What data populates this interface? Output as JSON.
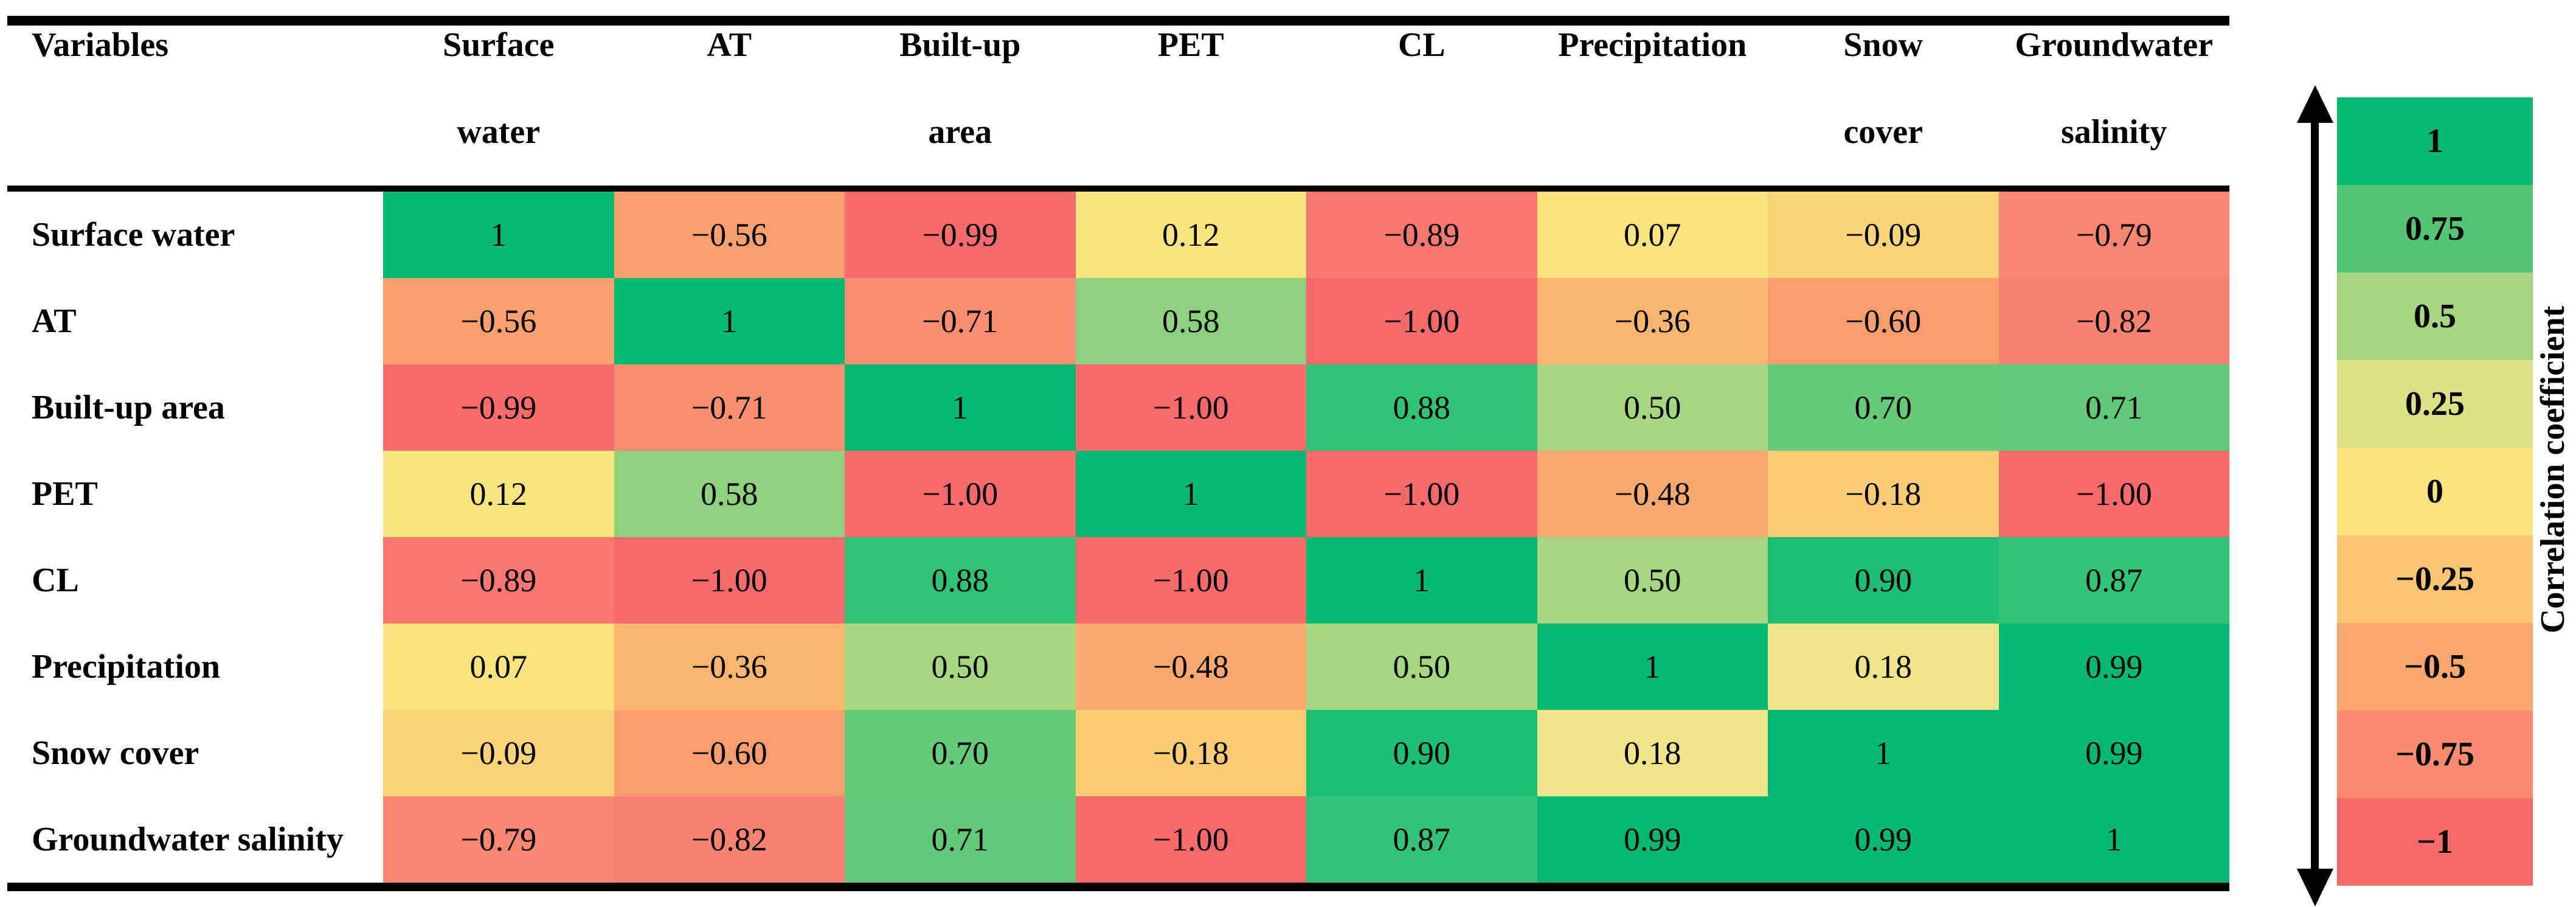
{
  "table": {
    "corner_label": "Variables",
    "columns": [
      {
        "lines": [
          "Surface",
          "water"
        ]
      },
      {
        "lines": [
          "AT"
        ]
      },
      {
        "lines": [
          "Built-up",
          "area"
        ]
      },
      {
        "lines": [
          "PET"
        ]
      },
      {
        "lines": [
          "CL"
        ]
      },
      {
        "lines": [
          "Precipitation"
        ]
      },
      {
        "lines": [
          "Snow",
          "cover"
        ]
      },
      {
        "lines": [
          "Groundwater",
          "salinity"
        ]
      }
    ],
    "rows": [
      {
        "label": "Surface water",
        "cells": [
          {
            "text": "1",
            "color": "#04BA70"
          },
          {
            "text": "−0.56",
            "color": "#F9A06E"
          },
          {
            "text": "−0.99",
            "color": "#F86A6C"
          },
          {
            "text": "0.12",
            "color": "#F8E57F"
          },
          {
            "text": "−0.89",
            "color": "#F87770"
          },
          {
            "text": "0.07",
            "color": "#FBE37D"
          },
          {
            "text": "−0.09",
            "color": "#FBD478"
          },
          {
            "text": "−0.79",
            "color": "#F98670"
          }
        ]
      },
      {
        "label": "AT",
        "cells": [
          {
            "text": "−0.56",
            "color": "#F9A06E"
          },
          {
            "text": "1",
            "color": "#04BA70"
          },
          {
            "text": "−0.71",
            "color": "#F98F70"
          },
          {
            "text": "0.58",
            "color": "#8DD07D"
          },
          {
            "text": "−1.00",
            "color": "#F8696C"
          },
          {
            "text": "−0.36",
            "color": "#FAB56F"
          },
          {
            "text": "−0.60",
            "color": "#F99C6E"
          },
          {
            "text": "−0.82",
            "color": "#F98370"
          }
        ]
      },
      {
        "label": "Built-up area",
        "cells": [
          {
            "text": "−0.99",
            "color": "#F86A6C"
          },
          {
            "text": "−0.71",
            "color": "#F98F70"
          },
          {
            "text": "1",
            "color": "#04BA70"
          },
          {
            "text": "−1.00",
            "color": "#F8696C"
          },
          {
            "text": "0.88",
            "color": "#2FC375"
          },
          {
            "text": "0.50",
            "color": "#A6D67F"
          },
          {
            "text": "0.70",
            "color": "#65CA7A"
          },
          {
            "text": "0.71",
            "color": "#62C97A"
          }
        ]
      },
      {
        "label": "PET",
        "cells": [
          {
            "text": "0.12",
            "color": "#F8E57F"
          },
          {
            "text": "0.58",
            "color": "#8DD07D"
          },
          {
            "text": "−1.00",
            "color": "#F8696C"
          },
          {
            "text": "1",
            "color": "#04BA70"
          },
          {
            "text": "−1.00",
            "color": "#F8696C"
          },
          {
            "text": "−0.48",
            "color": "#F9A96D"
          },
          {
            "text": "−0.18",
            "color": "#FBCC74"
          },
          {
            "text": "−1.00",
            "color": "#F8696C"
          }
        ]
      },
      {
        "label": "CL",
        "cells": [
          {
            "text": "−0.89",
            "color": "#F87770"
          },
          {
            "text": "−1.00",
            "color": "#F8696C"
          },
          {
            "text": "0.88",
            "color": "#2FC375"
          },
          {
            "text": "−1.00",
            "color": "#F8696C"
          },
          {
            "text": "1",
            "color": "#04BA70"
          },
          {
            "text": "0.50",
            "color": "#A6D67F"
          },
          {
            "text": "0.90",
            "color": "#1CBE73"
          },
          {
            "text": "0.87",
            "color": "#33C376"
          }
        ]
      },
      {
        "label": "Precipitation",
        "cells": [
          {
            "text": "0.07",
            "color": "#FBE37D"
          },
          {
            "text": "−0.36",
            "color": "#FAB56F"
          },
          {
            "text": "0.50",
            "color": "#A6D67F"
          },
          {
            "text": "−0.48",
            "color": "#F9A96D"
          },
          {
            "text": "0.50",
            "color": "#A6D67F"
          },
          {
            "text": "1",
            "color": "#04BA70"
          },
          {
            "text": "0.18",
            "color": "#EFE488"
          },
          {
            "text": "0.99",
            "color": "#04BA70"
          }
        ]
      },
      {
        "label": "Snow cover",
        "cells": [
          {
            "text": "−0.09",
            "color": "#FBD478"
          },
          {
            "text": "−0.60",
            "color": "#F99C6E"
          },
          {
            "text": "0.70",
            "color": "#65CA7A"
          },
          {
            "text": "−0.18",
            "color": "#FBCC74"
          },
          {
            "text": "0.90",
            "color": "#1CBE73"
          },
          {
            "text": "0.18",
            "color": "#EFE488"
          },
          {
            "text": "1",
            "color": "#04BA70"
          },
          {
            "text": "0.99",
            "color": "#04BA70"
          }
        ]
      },
      {
        "label": "Groundwater salinity",
        "cells": [
          {
            "text": "−0.79",
            "color": "#F98670"
          },
          {
            "text": "−0.82",
            "color": "#F98370"
          },
          {
            "text": "0.71",
            "color": "#62C97A"
          },
          {
            "text": "−1.00",
            "color": "#F8696C"
          },
          {
            "text": "0.87",
            "color": "#33C376"
          },
          {
            "text": "0.99",
            "color": "#04BA70"
          },
          {
            "text": "0.99",
            "color": "#04BA70"
          },
          {
            "text": "1",
            "color": "#04BA70"
          }
        ]
      }
    ]
  },
  "legend": {
    "label": "Correlation coefficient",
    "arrow_icon": "vertical-double-arrow-icon",
    "entries": [
      {
        "text": "1",
        "color": "#04BA70"
      },
      {
        "text": "0.75",
        "color": "#52C577"
      },
      {
        "text": "0.5",
        "color": "#A6D67F"
      },
      {
        "text": "0.25",
        "color": "#DDE183"
      },
      {
        "text": "0",
        "color": "#FAE27D"
      },
      {
        "text": "−0.25",
        "color": "#FBC672"
      },
      {
        "text": "−0.5",
        "color": "#F9A76C"
      },
      {
        "text": "−0.75",
        "color": "#F98C70"
      },
      {
        "text": "−1",
        "color": "#F8696C"
      }
    ]
  },
  "chart_data": {
    "type": "heatmap",
    "variables": [
      "Surface water",
      "AT",
      "Built-up area",
      "PET",
      "CL",
      "Precipitation",
      "Snow cover",
      "Groundwater salinity"
    ],
    "matrix": [
      [
        1,
        -0.56,
        -0.99,
        0.12,
        -0.89,
        0.07,
        -0.09,
        -0.79
      ],
      [
        -0.56,
        1,
        -0.71,
        0.58,
        -1.0,
        -0.36,
        -0.6,
        -0.82
      ],
      [
        -0.99,
        -0.71,
        1,
        -1.0,
        0.88,
        0.5,
        0.7,
        0.71
      ],
      [
        0.12,
        0.58,
        -1.0,
        1,
        -1.0,
        -0.48,
        -0.18,
        -1.0
      ],
      [
        -0.89,
        -1.0,
        0.88,
        -1.0,
        1,
        0.5,
        0.9,
        0.87
      ],
      [
        0.07,
        -0.36,
        0.5,
        -0.48,
        0.5,
        1,
        0.18,
        0.99
      ],
      [
        -0.09,
        -0.6,
        0.7,
        -0.18,
        0.9,
        0.18,
        1,
        0.99
      ],
      [
        -0.79,
        -0.82,
        0.71,
        -1.0,
        0.87,
        0.99,
        0.99,
        1
      ]
    ],
    "colorbar": {
      "label": "Correlation coefficient",
      "ticks": [
        1,
        0.75,
        0.5,
        0.25,
        0,
        -0.25,
        -0.5,
        -0.75,
        -1
      ],
      "range": [
        -1,
        1
      ],
      "positive_max_color": "#04BA70",
      "zero_color": "#FAE27D",
      "negative_max_color": "#F8696C"
    },
    "grid": false,
    "legend_position": "right"
  }
}
